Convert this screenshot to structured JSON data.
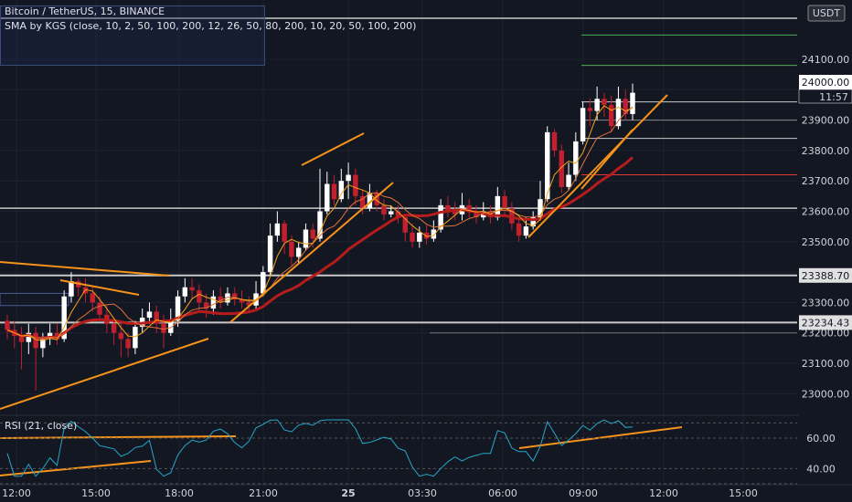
{
  "legend": {
    "symbol_line": "Bitcoin / TetherUS, 15, BINANCE",
    "indicator_line": "SMA by KGS (close, 10, 2, 50, 100, 200, 12, 26, 50, 80, 200, 10, 20, 50, 100, 200)"
  },
  "rsi": {
    "label": "RSI (21, close)"
  },
  "price_axis": {
    "currency": "USDT",
    "countdown": "11:57",
    "level_tags": [
      "23388.70",
      "23234.43"
    ],
    "current_tag": "24000.00"
  },
  "colors": {
    "background": "#131722",
    "bull": "#ffffff",
    "bear": "#c2202e",
    "trendline": "#f7931a",
    "rsi_line": "#26a7c9",
    "sma_slow": "#b71c1c",
    "sma_fast": "#f7a21a",
    "sma_mid": "#e0703a",
    "level": "#c8c8c8",
    "green_level": "#4caf50",
    "red_level": "#e53935"
  },
  "chart_data": {
    "type": "candlestick",
    "title": "Bitcoin / TetherUS, 15, BINANCE",
    "y_ticks": [
      23000,
      23100,
      23200,
      23300,
      23400,
      23500,
      23600,
      23700,
      23800,
      23900,
      24000,
      24100
    ],
    "x_ticks": [
      "12:00",
      "15:00",
      "18:00",
      "21:00",
      "25",
      "03:30",
      "06:00",
      "09:00",
      "12:00",
      "15:00"
    ],
    "ylim": [
      22935,
      24235
    ],
    "candles": [
      [
        23240,
        23210,
        23260,
        23180
      ],
      [
        23210,
        23190,
        23240,
        23150
      ],
      [
        23190,
        23170,
        23220,
        23080
      ],
      [
        23170,
        23200,
        23230,
        23130
      ],
      [
        23200,
        23150,
        23220,
        23010
      ],
      [
        23150,
        23180,
        23200,
        23120
      ],
      [
        23180,
        23200,
        23230,
        23160
      ],
      [
        23200,
        23180,
        23230,
        23160
      ],
      [
        23180,
        23320,
        23340,
        23170
      ],
      [
        23320,
        23370,
        23400,
        23300
      ],
      [
        23370,
        23350,
        23380,
        23320
      ],
      [
        23350,
        23330,
        23380,
        23300
      ],
      [
        23330,
        23300,
        23350,
        23270
      ],
      [
        23300,
        23260,
        23320,
        23240
      ],
      [
        23260,
        23230,
        23290,
        23200
      ],
      [
        23230,
        23200,
        23250,
        23160
      ],
      [
        23200,
        23180,
        23230,
        23120
      ],
      [
        23180,
        23150,
        23200,
        23120
      ],
      [
        23150,
        23220,
        23240,
        23130
      ],
      [
        23220,
        23250,
        23280,
        23200
      ],
      [
        23250,
        23270,
        23300,
        23230
      ],
      [
        23270,
        23230,
        23290,
        23200
      ],
      [
        23230,
        23200,
        23260,
        23150
      ],
      [
        23200,
        23240,
        23280,
        23190
      ],
      [
        23240,
        23320,
        23340,
        23220
      ],
      [
        23320,
        23350,
        23380,
        23300
      ],
      [
        23350,
        23340,
        23380,
        23310
      ],
      [
        23340,
        23300,
        23360,
        23270
      ],
      [
        23300,
        23280,
        23330,
        23250
      ],
      [
        23280,
        23320,
        23340,
        23260
      ],
      [
        23320,
        23300,
        23350,
        23280
      ],
      [
        23300,
        23330,
        23350,
        23290
      ],
      [
        23330,
        23310,
        23350,
        23290
      ],
      [
        23310,
        23300,
        23340,
        23280
      ],
      [
        23300,
        23290,
        23320,
        23270
      ],
      [
        23290,
        23330,
        23370,
        23280
      ],
      [
        23330,
        23400,
        23420,
        23320
      ],
      [
        23400,
        23520,
        23560,
        23390
      ],
      [
        23520,
        23560,
        23600,
        23500
      ],
      [
        23560,
        23500,
        23570,
        23460
      ],
      [
        23500,
        23450,
        23520,
        23420
      ],
      [
        23450,
        23480,
        23500,
        23430
      ],
      [
        23480,
        23540,
        23560,
        23470
      ],
      [
        23540,
        23510,
        23560,
        23480
      ],
      [
        23510,
        23600,
        23740,
        23500
      ],
      [
        23600,
        23690,
        23730,
        23590
      ],
      [
        23690,
        23640,
        23720,
        23620
      ],
      [
        23640,
        23700,
        23740,
        23630
      ],
      [
        23700,
        23720,
        23760,
        23640
      ],
      [
        23720,
        23650,
        23740,
        23620
      ],
      [
        23650,
        23610,
        23670,
        23590
      ],
      [
        23610,
        23660,
        23690,
        23600
      ],
      [
        23660,
        23620,
        23670,
        23600
      ],
      [
        23620,
        23590,
        23640,
        23570
      ],
      [
        23590,
        23600,
        23620,
        23580
      ],
      [
        23600,
        23580,
        23620,
        23560
      ],
      [
        23580,
        23530,
        23590,
        23500
      ],
      [
        23530,
        23500,
        23560,
        23480
      ],
      [
        23500,
        23530,
        23550,
        23480
      ],
      [
        23530,
        23510,
        23560,
        23490
      ],
      [
        23510,
        23540,
        23570,
        23500
      ],
      [
        23540,
        23620,
        23640,
        23530
      ],
      [
        23620,
        23600,
        23650,
        23580
      ],
      [
        23600,
        23590,
        23630,
        23570
      ],
      [
        23590,
        23620,
        23660,
        23570
      ],
      [
        23620,
        23600,
        23640,
        23580
      ],
      [
        23600,
        23580,
        23620,
        23560
      ],
      [
        23580,
        23600,
        23630,
        23570
      ],
      [
        23600,
        23580,
        23620,
        23560
      ],
      [
        23580,
        23650,
        23680,
        23570
      ],
      [
        23650,
        23610,
        23670,
        23590
      ],
      [
        23610,
        23560,
        23630,
        23540
      ],
      [
        23560,
        23520,
        23580,
        23500
      ],
      [
        23520,
        23550,
        23580,
        23510
      ],
      [
        23550,
        23580,
        23600,
        23540
      ],
      [
        23580,
        23640,
        23700,
        23570
      ],
      [
        23640,
        23860,
        23880,
        23630
      ],
      [
        23860,
        23800,
        23870,
        23780
      ],
      [
        23800,
        23680,
        23820,
        23660
      ],
      [
        23680,
        23720,
        23760,
        23670
      ],
      [
        23720,
        23830,
        23860,
        23700
      ],
      [
        23830,
        23940,
        23960,
        23820
      ],
      [
        23940,
        23930,
        23970,
        23880
      ],
      [
        23930,
        23970,
        24010,
        23900
      ],
      [
        23970,
        23950,
        23990,
        23910
      ],
      [
        23950,
        23880,
        23980,
        23860
      ],
      [
        23880,
        23970,
        24010,
        23870
      ],
      [
        23970,
        23920,
        24000,
        23900
      ],
      [
        23920,
        23990,
        24020,
        23900
      ]
    ],
    "horizontal_levels": [
      24235,
      24180,
      24080,
      23960,
      23900,
      23840,
      23720,
      23610,
      23389,
      23234,
      23200
    ],
    "rsi_ticks": [
      40,
      60
    ]
  }
}
